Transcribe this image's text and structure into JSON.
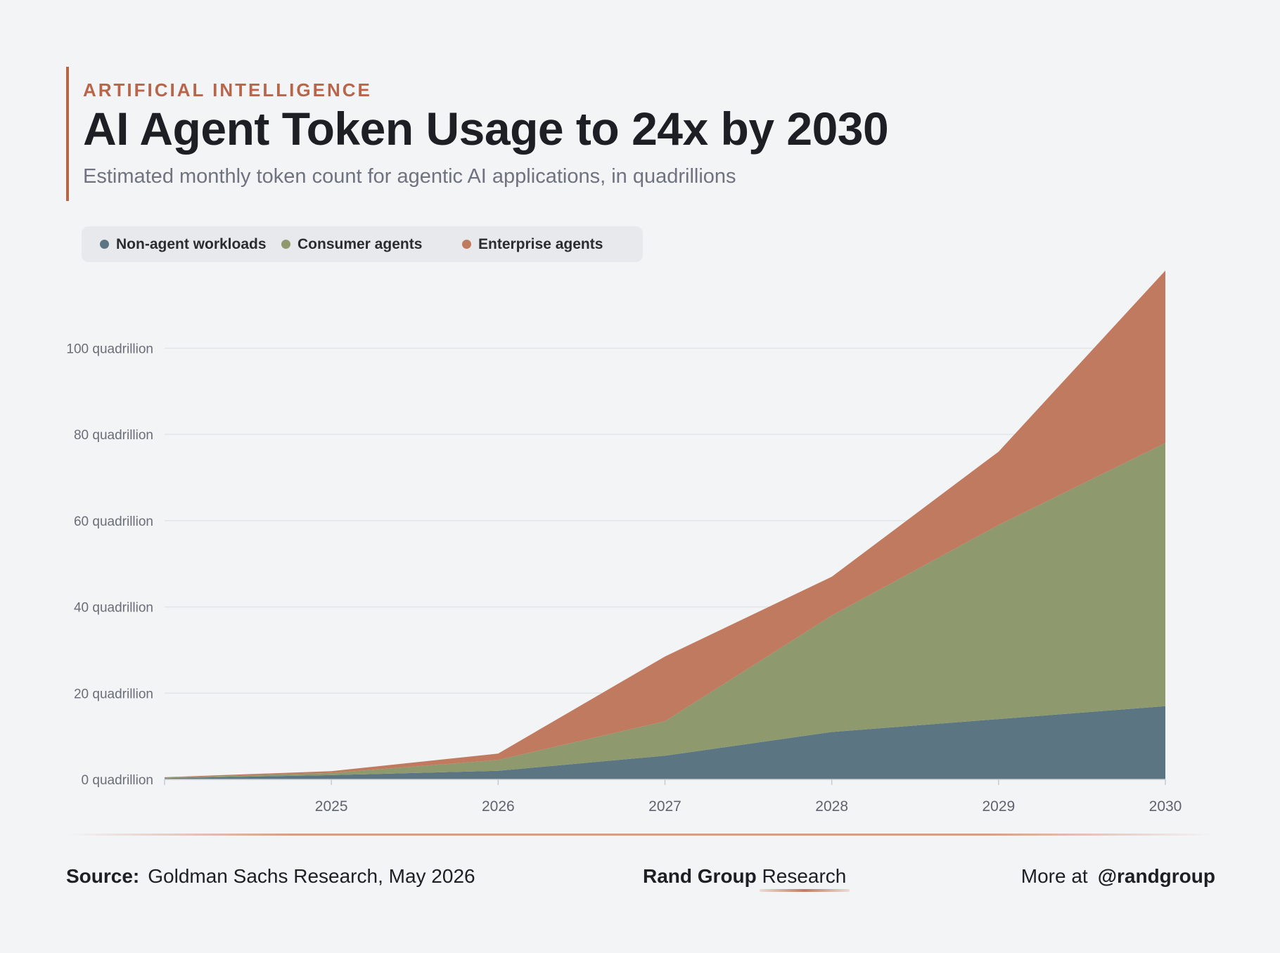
{
  "header": {
    "kicker": "ARTIFICIAL INTELLIGENCE",
    "title": "AI Agent Token Usage to 24x by 2030",
    "subtitle": "Estimated monthly token count for agentic AI applications, in quadrillions"
  },
  "legend": [
    {
      "label": "Non-agent workloads",
      "color": "#5b7582"
    },
    {
      "label": "Consumer agents",
      "color": "#8e9a6d"
    },
    {
      "label": "Enterprise agents",
      "color": "#c07a5f"
    }
  ],
  "chart_data": {
    "type": "area",
    "stacked": true,
    "x": [
      2024,
      2025,
      2026,
      2027,
      2028,
      2029,
      2030
    ],
    "x_tick_labels": [
      "2025",
      "2026",
      "2027",
      "2028",
      "2029",
      "2030"
    ],
    "xlim": [
      2024,
      2030
    ],
    "ylim": [
      0,
      118
    ],
    "y_ticks": [
      0,
      20,
      40,
      60,
      80,
      100
    ],
    "y_tick_labels": [
      "0 quadrillion",
      "20 quadrillion",
      "40 quadrillion",
      "60 quadrillion",
      "80 quadrillion",
      "100 quadrillion"
    ],
    "grid": true,
    "legend_position": "top-left",
    "series": [
      {
        "name": "Non-agent workloads",
        "color": "#5b7582",
        "values": [
          0.3,
          1.0,
          2.0,
          5.5,
          11.0,
          14.0,
          17.0
        ]
      },
      {
        "name": "Consumer agents",
        "color": "#8e9a6d",
        "values": [
          0.1,
          0.5,
          2.5,
          8.0,
          27.0,
          45.0,
          61.0
        ]
      },
      {
        "name": "Enterprise agents",
        "color": "#c07a5f",
        "values": [
          0.1,
          0.4,
          1.5,
          15.0,
          9.0,
          17.0,
          40.0
        ]
      }
    ]
  },
  "footer": {
    "source_label": "Source:",
    "source_text": "Goldman Sachs Research, May 2026",
    "brand_bold": "Rand Group",
    "brand_regular": "Research",
    "more_label": "More at",
    "handle": "@randgroup"
  }
}
